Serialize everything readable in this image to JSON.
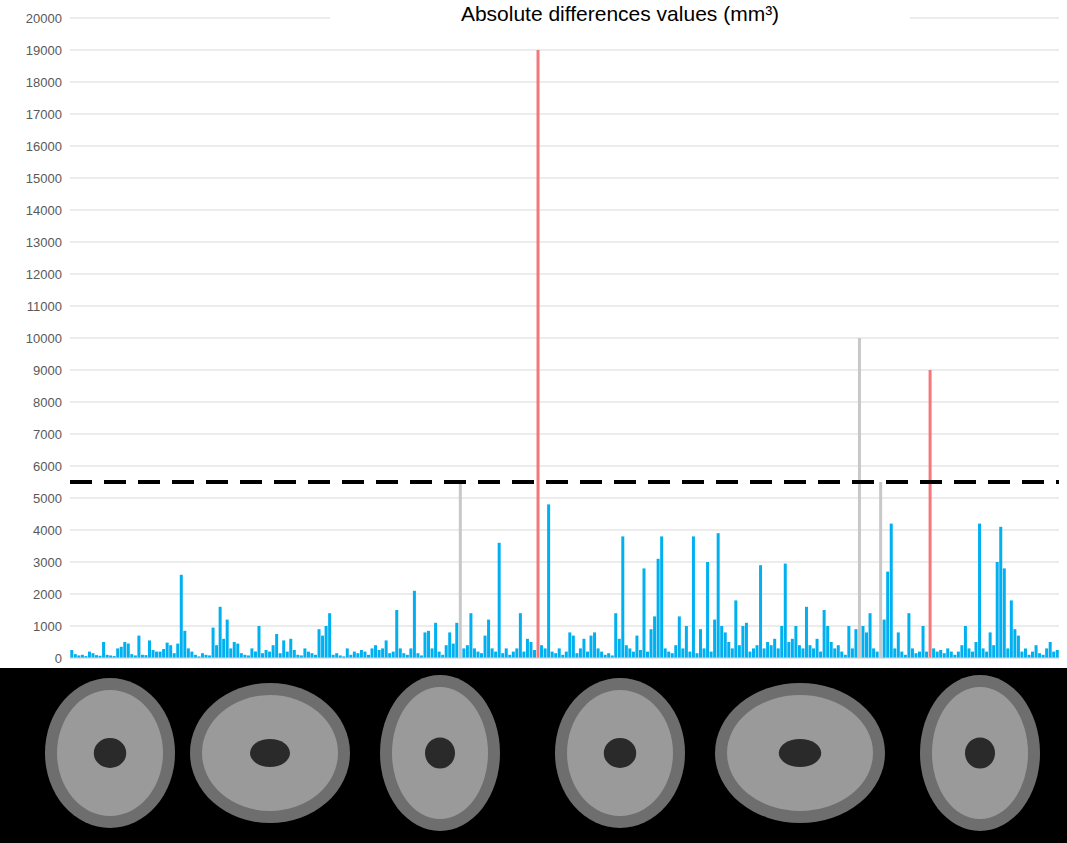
{
  "chart_data": {
    "type": "bar",
    "title": "Absolute differences values (mm³)",
    "values": [
      250,
      120,
      80,
      100,
      60,
      200,
      150,
      90,
      70,
      500,
      100,
      80,
      60,
      300,
      350,
      500,
      450,
      120,
      80,
      700,
      100,
      90,
      550,
      250,
      200,
      200,
      280,
      480,
      400,
      150,
      450,
      2600,
      850,
      300,
      200,
      100,
      50,
      150,
      100,
      80,
      950,
      400,
      1600,
      600,
      1200,
      300,
      500,
      450,
      150,
      100,
      80,
      300,
      200,
      1000,
      150,
      250,
      200,
      400,
      750,
      150,
      550,
      200,
      600,
      250,
      100,
      80,
      300,
      200,
      150,
      100,
      900,
      700,
      1000,
      1400,
      100,
      150,
      80,
      50,
      300,
      100,
      200,
      150,
      250,
      200,
      100,
      300,
      400,
      250,
      300,
      550,
      150,
      200,
      1500,
      300,
      150,
      100,
      300,
      2100,
      150,
      80,
      800,
      850,
      300,
      1100,
      200,
      100,
      400,
      800,
      450,
      1100,
      5500,
      300,
      400,
      1400,
      300,
      200,
      150,
      700,
      1200,
      300,
      200,
      3600,
      150,
      300,
      100,
      200,
      300,
      1400,
      200,
      600,
      500,
      250,
      19000,
      400,
      300,
      4800,
      200,
      150,
      300,
      100,
      200,
      800,
      700,
      150,
      300,
      600,
      200,
      700,
      800,
      300,
      200,
      100,
      150,
      80,
      1400,
      600,
      3800,
      400,
      300,
      200,
      700,
      250,
      2800,
      200,
      900,
      1300,
      3100,
      3800,
      300,
      200,
      150,
      400,
      1300,
      300,
      1000,
      200,
      3800,
      150,
      900,
      300,
      3000,
      200,
      1200,
      3900,
      1000,
      800,
      500,
      300,
      1800,
      400,
      1000,
      1100,
      200,
      300,
      400,
      2900,
      300,
      500,
      400,
      600,
      300,
      1000,
      2950,
      500,
      600,
      1000,
      400,
      300,
      1600,
      400,
      300,
      600,
      200,
      1500,
      1000,
      500,
      300,
      400,
      200,
      100,
      1000,
      300,
      900,
      10000,
      1000,
      800,
      1400,
      300,
      200,
      5500,
      1200,
      2700,
      4200,
      300,
      800,
      200,
      100,
      1400,
      300,
      150,
      200,
      1000,
      200,
      9000,
      300,
      200,
      250,
      150,
      300,
      200,
      100,
      200,
      400,
      1000,
      300,
      200,
      500,
      4200,
      300,
      200,
      800,
      400,
      3000,
      4100,
      2800,
      300,
      1800,
      900,
      700,
      200,
      300,
      100,
      200,
      400,
      150,
      100,
      300,
      500,
      200,
      250
    ],
    "colors": [
      "#00b0f0",
      "#00b0f0",
      "#00b0f0",
      "#00b0f0",
      "#00b0f0",
      "#00b0f0",
      "#00b0f0",
      "#00b0f0",
      "#00b0f0",
      "#00b0f0",
      "#00b0f0",
      "#00b0f0",
      "#00b0f0",
      "#00b0f0",
      "#00b0f0",
      "#00b0f0",
      "#00b0f0",
      "#00b0f0",
      "#00b0f0",
      "#00b0f0",
      "#00b0f0",
      "#00b0f0",
      "#00b0f0",
      "#00b0f0",
      "#00b0f0",
      "#00b0f0",
      "#00b0f0",
      "#00b0f0",
      "#00b0f0",
      "#00b0f0",
      "#00b0f0",
      "#00b0f0",
      "#00b0f0",
      "#00b0f0",
      "#00b0f0",
      "#00b0f0",
      "#00b0f0",
      "#00b0f0",
      "#00b0f0",
      "#00b0f0",
      "#00b0f0",
      "#00b0f0",
      "#00b0f0",
      "#00b0f0",
      "#00b0f0",
      "#00b0f0",
      "#00b0f0",
      "#00b0f0",
      "#00b0f0",
      "#00b0f0",
      "#00b0f0",
      "#00b0f0",
      "#00b0f0",
      "#00b0f0",
      "#00b0f0",
      "#00b0f0",
      "#00b0f0",
      "#00b0f0",
      "#00b0f0",
      "#00b0f0",
      "#00b0f0",
      "#00b0f0",
      "#00b0f0",
      "#00b0f0",
      "#00b0f0",
      "#00b0f0",
      "#00b0f0",
      "#00b0f0",
      "#00b0f0",
      "#00b0f0",
      "#00b0f0",
      "#00b0f0",
      "#00b0f0",
      "#00b0f0",
      "#00b0f0",
      "#00b0f0",
      "#00b0f0",
      "#00b0f0",
      "#00b0f0",
      "#00b0f0",
      "#00b0f0",
      "#00b0f0",
      "#00b0f0",
      "#00b0f0",
      "#00b0f0",
      "#00b0f0",
      "#00b0f0",
      "#00b0f0",
      "#00b0f0",
      "#00b0f0",
      "#00b0f0",
      "#00b0f0",
      "#00b0f0",
      "#00b0f0",
      "#00b0f0",
      "#00b0f0",
      "#00b0f0",
      "#00b0f0",
      "#00b0f0",
      "#00b0f0",
      "#00b0f0",
      "#00b0f0",
      "#00b0f0",
      "#00b0f0",
      "#00b0f0",
      "#00b0f0",
      "#00b0f0",
      "#00b0f0",
      "#00b0f0",
      "#00b0f0",
      "#c8c8c8",
      "#00b0f0",
      "#00b0f0",
      "#00b0f0",
      "#00b0f0",
      "#00b0f0",
      "#00b0f0",
      "#00b0f0",
      "#00b0f0",
      "#00b0f0",
      "#00b0f0",
      "#00b0f0",
      "#00b0f0",
      "#00b0f0",
      "#00b0f0",
      "#00b0f0",
      "#00b0f0",
      "#00b0f0",
      "#00b0f0",
      "#00b0f0",
      "#00b0f0",
      "#00b0f0",
      "#f4777b",
      "#00b0f0",
      "#00b0f0",
      "#00b0f0",
      "#00b0f0",
      "#00b0f0",
      "#00b0f0",
      "#00b0f0",
      "#00b0f0",
      "#00b0f0",
      "#00b0f0",
      "#00b0f0",
      "#00b0f0",
      "#00b0f0",
      "#00b0f0",
      "#00b0f0",
      "#00b0f0",
      "#00b0f0",
      "#00b0f0",
      "#00b0f0",
      "#00b0f0",
      "#00b0f0",
      "#00b0f0",
      "#00b0f0",
      "#00b0f0",
      "#00b0f0",
      "#00b0f0",
      "#00b0f0",
      "#00b0f0",
      "#00b0f0",
      "#00b0f0",
      "#00b0f0",
      "#00b0f0",
      "#00b0f0",
      "#00b0f0",
      "#00b0f0",
      "#00b0f0",
      "#00b0f0",
      "#00b0f0",
      "#00b0f0",
      "#00b0f0",
      "#00b0f0",
      "#00b0f0",
      "#00b0f0",
      "#00b0f0",
      "#00b0f0",
      "#00b0f0",
      "#00b0f0",
      "#00b0f0",
      "#00b0f0",
      "#00b0f0",
      "#00b0f0",
      "#00b0f0",
      "#00b0f0",
      "#00b0f0",
      "#00b0f0",
      "#00b0f0",
      "#00b0f0",
      "#00b0f0",
      "#00b0f0",
      "#00b0f0",
      "#00b0f0",
      "#00b0f0",
      "#00b0f0",
      "#00b0f0",
      "#00b0f0",
      "#00b0f0",
      "#00b0f0",
      "#00b0f0",
      "#00b0f0",
      "#00b0f0",
      "#00b0f0",
      "#00b0f0",
      "#00b0f0",
      "#00b0f0",
      "#00b0f0",
      "#00b0f0",
      "#00b0f0",
      "#00b0f0",
      "#00b0f0",
      "#00b0f0",
      "#00b0f0",
      "#00b0f0",
      "#00b0f0",
      "#00b0f0",
      "#00b0f0",
      "#00b0f0",
      "#00b0f0",
      "#00b0f0",
      "#00b0f0",
      "#00b0f0",
      "#c8c8c8",
      "#00b0f0",
      "#00b0f0",
      "#00b0f0",
      "#00b0f0",
      "#00b0f0",
      "#c8c8c8",
      "#00b0f0",
      "#00b0f0",
      "#00b0f0",
      "#00b0f0",
      "#00b0f0",
      "#00b0f0",
      "#00b0f0",
      "#00b0f0",
      "#00b0f0",
      "#00b0f0",
      "#00b0f0",
      "#00b0f0",
      "#00b0f0",
      "#f4777b",
      "#00b0f0",
      "#00b0f0",
      "#00b0f0",
      "#00b0f0",
      "#00b0f0",
      "#00b0f0",
      "#00b0f0",
      "#00b0f0",
      "#00b0f0",
      "#00b0f0",
      "#00b0f0",
      "#00b0f0",
      "#00b0f0",
      "#00b0f0",
      "#00b0f0",
      "#00b0f0",
      "#00b0f0",
      "#00b0f0",
      "#00b0f0",
      "#00b0f0",
      "#00b0f0",
      "#00b0f0",
      "#00b0f0",
      "#00b0f0",
      "#00b0f0",
      "#00b0f0",
      "#00b0f0",
      "#00b0f0",
      "#00b0f0",
      "#00b0f0",
      "#00b0f0",
      "#00b0f0",
      "#00b0f0",
      "#00b0f0",
      "#00b0f0",
      "#00b0f0"
    ],
    "threshold": 5500,
    "ylim": [
      0,
      20000
    ],
    "yticks": [
      0,
      1000,
      2000,
      3000,
      4000,
      5000,
      6000,
      7000,
      8000,
      9000,
      10000,
      11000,
      12000,
      13000,
      14000,
      15000,
      16000,
      17000,
      18000,
      19000,
      20000
    ],
    "grid": true,
    "tick_labels": "y"
  }
}
